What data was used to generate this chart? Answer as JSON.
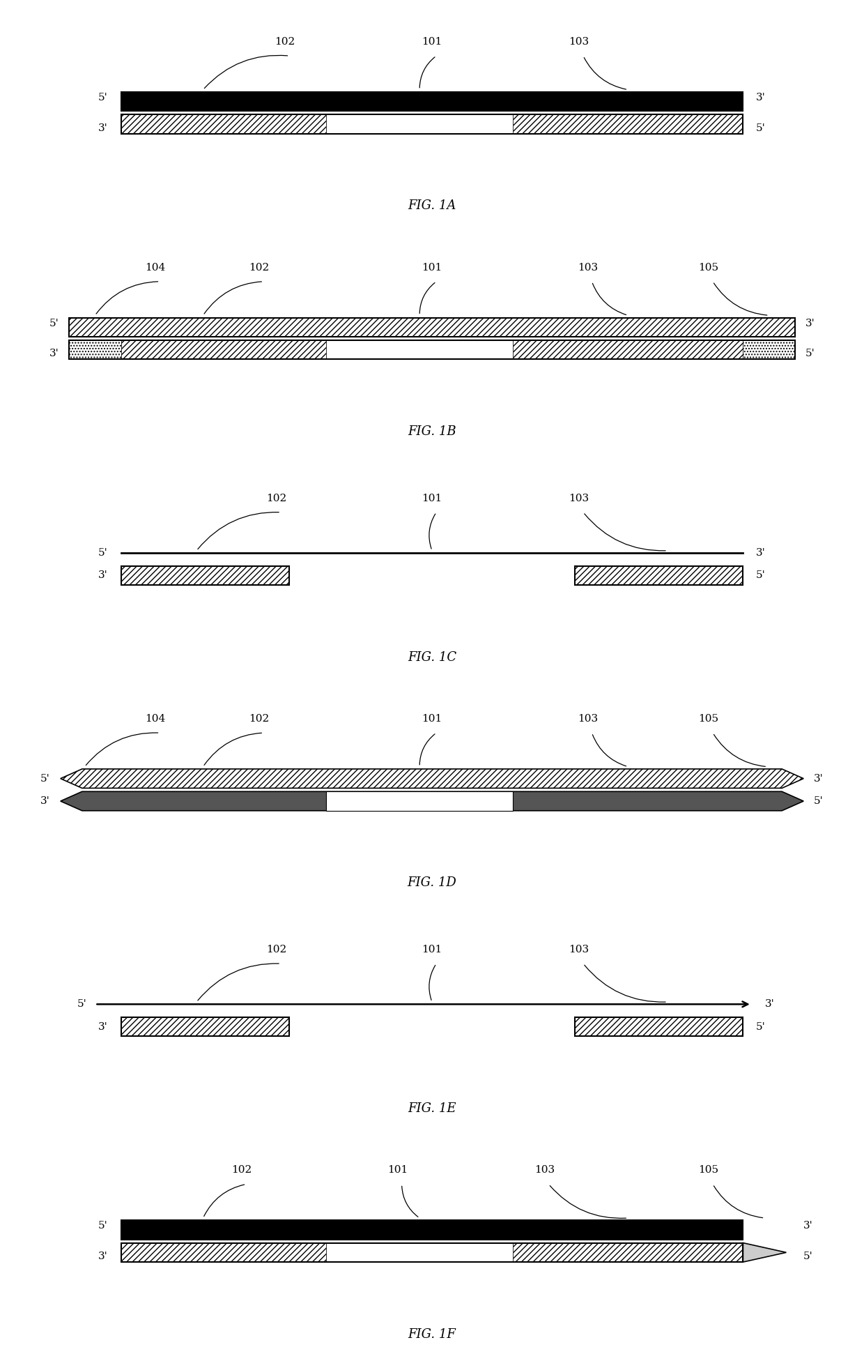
{
  "bg_color": "#ffffff",
  "fig_width": 12.4,
  "fig_height": 19.42,
  "panels": [
    {
      "id": "1A",
      "label": "FIG. 1A",
      "strand_type": "1A",
      "labels": [
        "102",
        "101",
        "103"
      ],
      "label_xf": [
        0.33,
        0.5,
        0.67
      ]
    },
    {
      "id": "1B",
      "label": "FIG. 1B",
      "strand_type": "1B",
      "labels": [
        "104",
        "102",
        "101",
        "103",
        "105"
      ],
      "label_xf": [
        0.18,
        0.3,
        0.5,
        0.68,
        0.82
      ]
    },
    {
      "id": "1C",
      "label": "FIG. 1C",
      "strand_type": "1C",
      "labels": [
        "102",
        "101",
        "103"
      ],
      "label_xf": [
        0.32,
        0.5,
        0.67
      ]
    },
    {
      "id": "1D",
      "label": "FIG. 1D",
      "strand_type": "1D",
      "labels": [
        "104",
        "102",
        "101",
        "103",
        "105"
      ],
      "label_xf": [
        0.18,
        0.3,
        0.5,
        0.68,
        0.82
      ]
    },
    {
      "id": "1E",
      "label": "FIG. 1E",
      "strand_type": "1E",
      "labels": [
        "102",
        "101",
        "103"
      ],
      "label_xf": [
        0.32,
        0.5,
        0.67
      ]
    },
    {
      "id": "1F",
      "label": "FIG. 1F",
      "strand_type": "1F",
      "labels": [
        "102",
        "101",
        "103",
        "105"
      ],
      "label_xf": [
        0.28,
        0.46,
        0.63,
        0.82
      ]
    }
  ]
}
